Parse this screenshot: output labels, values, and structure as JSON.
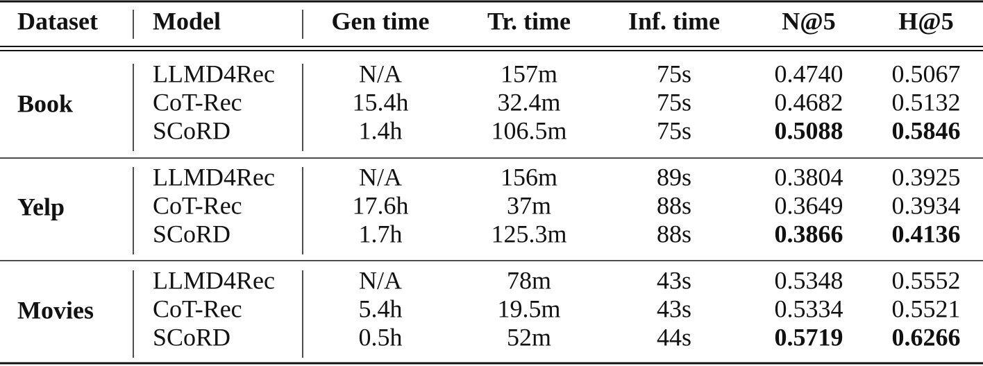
{
  "table": {
    "header": [
      "Dataset",
      "Model",
      "Gen time",
      "Tr. time",
      "Inf. time",
      "N@5",
      "H@5"
    ],
    "groups": [
      {
        "dataset": "Book",
        "rows": [
          [
            "LLMD4Rec",
            "N/A",
            "157m",
            "75s",
            "0.4740",
            "0.5067"
          ],
          [
            "CoT-Rec",
            "15.4h",
            "32.4m",
            "75s",
            "0.4682",
            "0.5132"
          ],
          [
            "SCoRD",
            "1.4h",
            "106.5m",
            "75s",
            "0.5088",
            "0.5846"
          ]
        ]
      },
      {
        "dataset": "Yelp",
        "rows": [
          [
            "LLMD4Rec",
            "N/A",
            "156m",
            "89s",
            "0.3804",
            "0.3925"
          ],
          [
            "CoT-Rec",
            "17.6h",
            "37m",
            "88s",
            "0.3649",
            "0.3934"
          ],
          [
            "SCoRD",
            "1.7h",
            "125.3m",
            "88s",
            "0.3866",
            "0.4136"
          ]
        ]
      },
      {
        "dataset": "Movies",
        "rows": [
          [
            "LLMD4Rec",
            "N/A",
            "78m",
            "43s",
            "0.5348",
            "0.5552"
          ],
          [
            "CoT-Rec",
            "5.4h",
            "19.5m",
            "43s",
            "0.5334",
            "0.5521"
          ],
          [
            "SCoRD",
            "0.5h",
            "52m",
            "44s",
            "0.5719",
            "0.6266"
          ]
        ]
      }
    ]
  }
}
